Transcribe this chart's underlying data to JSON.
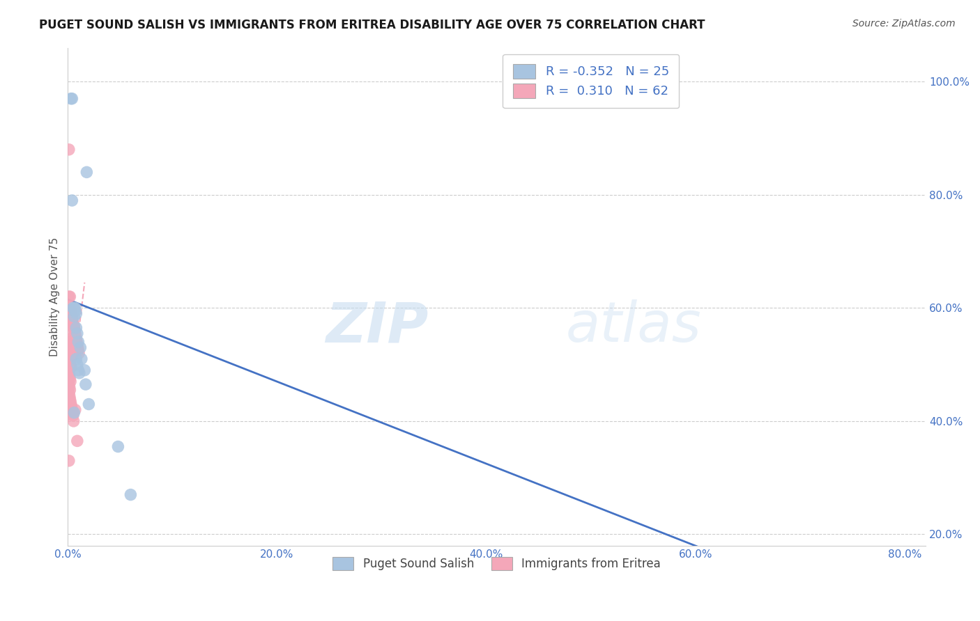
{
  "title": "PUGET SOUND SALISH VS IMMIGRANTS FROM ERITREA DISABILITY AGE OVER 75 CORRELATION CHART",
  "source": "Source: ZipAtlas.com",
  "ylabel": "Disability Age Over 75",
  "xlabel": "",
  "xlim": [
    0.0,
    0.82
  ],
  "ylim": [
    0.18,
    1.06
  ],
  "xticks": [
    0.0,
    0.2,
    0.4,
    0.6,
    0.8
  ],
  "xtick_labels": [
    "0.0%",
    "20.0%",
    "40.0%",
    "60.0%",
    "80.0%"
  ],
  "yticks": [
    0.2,
    0.4,
    0.6,
    0.8,
    1.0
  ],
  "ytick_labels": [
    "20.0%",
    "40.0%",
    "60.0%",
    "80.0%",
    "100.0%"
  ],
  "grid_color": "#cccccc",
  "background_color": "#ffffff",
  "series_blue": {
    "label": "Puget Sound Salish",
    "color": "#a8c4e0",
    "R": -0.352,
    "N": 25,
    "x": [
      0.003,
      0.004,
      0.018,
      0.004,
      0.005,
      0.006,
      0.007,
      0.008,
      0.006,
      0.007,
      0.008,
      0.009,
      0.01,
      0.012,
      0.013,
      0.016,
      0.017,
      0.02,
      0.006,
      0.008,
      0.009,
      0.01,
      0.011,
      0.048,
      0.06
    ],
    "y": [
      0.97,
      0.97,
      0.84,
      0.79,
      0.6,
      0.6,
      0.595,
      0.59,
      0.585,
      0.6,
      0.565,
      0.555,
      0.54,
      0.53,
      0.51,
      0.49,
      0.465,
      0.43,
      0.415,
      0.51,
      0.5,
      0.49,
      0.485,
      0.355,
      0.27
    ]
  },
  "series_pink": {
    "label": "Immigrants from Eritrea",
    "color": "#f4a7b9",
    "R": 0.31,
    "N": 62,
    "x": [
      0.001,
      0.0015,
      0.002,
      0.0025,
      0.003,
      0.0035,
      0.004,
      0.0045,
      0.005,
      0.0055,
      0.006,
      0.0065,
      0.007,
      0.0075,
      0.008,
      0.0085,
      0.009,
      0.0095,
      0.01,
      0.0105,
      0.001,
      0.0015,
      0.002,
      0.0025,
      0.003,
      0.0035,
      0.004,
      0.0045,
      0.005,
      0.0005,
      0.001,
      0.0015,
      0.002,
      0.0025,
      0.003,
      0.0035,
      0.004,
      0.0015,
      0.002,
      0.0025,
      0.003,
      0.0005,
      0.001,
      0.0015,
      0.002,
      0.0025,
      0.001,
      0.0015,
      0.002,
      0.001,
      0.0015,
      0.002,
      0.0025,
      0.003,
      0.0035,
      0.004,
      0.0045,
      0.005,
      0.0055,
      0.007,
      0.009,
      0.001
    ],
    "y": [
      0.88,
      0.57,
      0.62,
      0.59,
      0.595,
      0.59,
      0.585,
      0.58,
      0.575,
      0.57,
      0.565,
      0.56,
      0.555,
      0.55,
      0.545,
      0.54,
      0.535,
      0.53,
      0.525,
      0.52,
      0.62,
      0.6,
      0.598,
      0.595,
      0.59,
      0.585,
      0.58,
      0.575,
      0.57,
      0.55,
      0.545,
      0.54,
      0.535,
      0.53,
      0.525,
      0.52,
      0.515,
      0.51,
      0.505,
      0.5,
      0.495,
      0.49,
      0.485,
      0.48,
      0.475,
      0.47,
      0.465,
      0.46,
      0.455,
      0.45,
      0.445,
      0.44,
      0.435,
      0.43,
      0.425,
      0.42,
      0.415,
      0.41,
      0.4,
      0.42,
      0.365,
      0.33
    ]
  },
  "blue_line": {
    "x_start": 0.0,
    "y_start": 0.615,
    "x_end": 0.82,
    "y_end": 0.02
  },
  "pink_line": {
    "x_start": 0.0,
    "y_start": 0.43,
    "x_end": 0.012,
    "y_end": 0.6
  },
  "legend_box": {
    "R_blue": "-0.352",
    "N_blue": "25",
    "R_pink": "0.310",
    "N_pink": "62",
    "blue_color": "#a8c4e0",
    "pink_color": "#f4a7b9",
    "text_color_blue": "#4472c4",
    "text_color_pink": "#4472c4"
  },
  "watermark_part1": "ZIP",
  "watermark_part2": "atlas",
  "title_fontsize": 12,
  "axis_label_fontsize": 11,
  "tick_fontsize": 11,
  "legend_fontsize": 13
}
